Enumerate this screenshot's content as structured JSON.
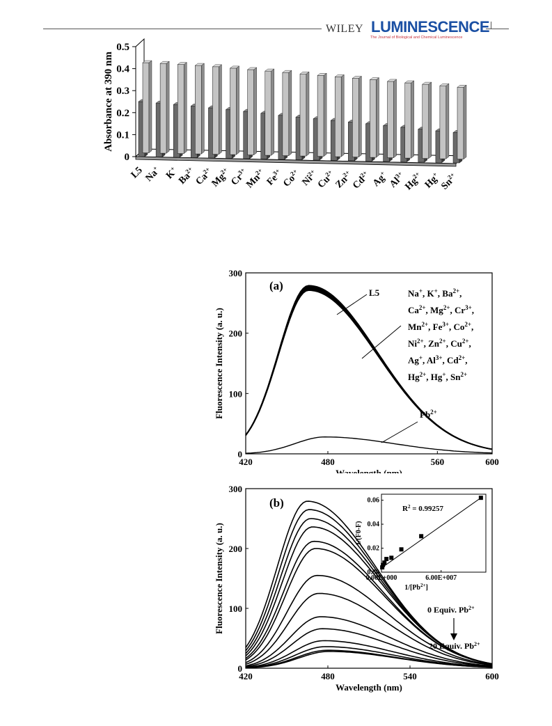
{
  "header": {
    "publisher": "WILEY",
    "journal": "LUMINESCENCE",
    "subtitle": "The Journal of Biological and Chemical Luminescence",
    "brand_color": "#1a4fa3",
    "subtitle_color": "#c8323c"
  },
  "chart_data": [
    {
      "type": "bar",
      "style": "3d-grouped",
      "ylabel": "Absorbance at 390 nm",
      "xlabel": "",
      "ylim": [
        0,
        0.5
      ],
      "yticks": [
        "0",
        "0.1",
        "0.2",
        "0.3",
        "0.4",
        "0.5"
      ],
      "categories": [
        {
          "base": "L5",
          "sup": ""
        },
        {
          "base": "Na",
          "sup": "+"
        },
        {
          "base": "K",
          "sup": "+"
        },
        {
          "base": "Ba",
          "sup": "2+"
        },
        {
          "base": "Ca",
          "sup": "2+"
        },
        {
          "base": "Mg",
          "sup": "2+"
        },
        {
          "base": "Cr",
          "sup": "3+"
        },
        {
          "base": "Mn",
          "sup": "2+"
        },
        {
          "base": "Fe",
          "sup": "3+"
        },
        {
          "base": "Co",
          "sup": "2+"
        },
        {
          "base": "Ni",
          "sup": "2+"
        },
        {
          "base": "Cu",
          "sup": "2+"
        },
        {
          "base": "Zn",
          "sup": "2+"
        },
        {
          "base": "Cd",
          "sup": "2+"
        },
        {
          "base": "Ag",
          "sup": "+"
        },
        {
          "base": "Al",
          "sup": "3+"
        },
        {
          "base": "Hg",
          "sup": "2+"
        },
        {
          "base": "Hg",
          "sup": "+"
        },
        {
          "base": "Sn",
          "sup": "2+"
        }
      ],
      "series": [
        {
          "color": "#6a6a6a",
          "values": [
            0.25,
            0.245,
            0.24,
            0.235,
            0.228,
            0.222,
            0.215,
            0.208,
            0.2,
            0.194,
            0.188,
            0.182,
            0.176,
            0.17,
            0.163,
            0.157,
            0.15,
            0.144,
            0.138
          ]
        },
        {
          "color": "#c4c4c4",
          "values": [
            0.41,
            0.408,
            0.405,
            0.402,
            0.398,
            0.393,
            0.388,
            0.383,
            0.378,
            0.373,
            0.368,
            0.363,
            0.358,
            0.353,
            0.347,
            0.342,
            0.337,
            0.332,
            0.327
          ]
        }
      ]
    },
    {
      "type": "line",
      "panel_label": "(a)",
      "xlabel": "Wavelength (nm)",
      "ylabel": "Fluorescence Intensity (a. u.)",
      "xlim": [
        420,
        600
      ],
      "ylim": [
        0,
        300
      ],
      "xticks": [
        "420",
        "480",
        "560",
        "600"
      ],
      "yticks": [
        "0",
        "100",
        "200",
        "300"
      ],
      "annotations": {
        "l5": "L5",
        "pb": "Pb",
        "pb_sup": "2+",
        "ions": [
          [
            {
              "t": "Na"
            },
            {
              "t": "+",
              "sup": true
            },
            {
              "t": ", K"
            },
            {
              "t": "+",
              "sup": true
            },
            {
              "t": ", Ba"
            },
            {
              "t": "2+",
              "sup": true
            },
            {
              "t": ","
            }
          ],
          [
            {
              "t": "Ca"
            },
            {
              "t": "2+",
              "sup": true
            },
            {
              "t": ", Mg"
            },
            {
              "t": "2+",
              "sup": true
            },
            {
              "t": ", Cr"
            },
            {
              "t": "3+",
              "sup": true
            },
            {
              "t": ","
            }
          ],
          [
            {
              "t": "Mn"
            },
            {
              "t": "2+",
              "sup": true
            },
            {
              "t": ", Fe"
            },
            {
              "t": "3+",
              "sup": true
            },
            {
              "t": ", Co"
            },
            {
              "t": "2+",
              "sup": true
            },
            {
              "t": ","
            }
          ],
          [
            {
              "t": "Ni"
            },
            {
              "t": "2+",
              "sup": true
            },
            {
              "t": ", Zn"
            },
            {
              "t": "2+",
              "sup": true
            },
            {
              "t": ", Cu"
            },
            {
              "t": "2+",
              "sup": true
            },
            {
              "t": ","
            }
          ],
          [
            {
              "t": "Ag"
            },
            {
              "t": "+",
              "sup": true
            },
            {
              "t": ", Al"
            },
            {
              "t": "3+",
              "sup": true
            },
            {
              "t": ", Cd"
            },
            {
              "t": "2+",
              "sup": true
            },
            {
              "t": ","
            }
          ],
          [
            {
              "t": "Hg"
            },
            {
              "t": "2+",
              "sup": true
            },
            {
              "t": ", Hg"
            },
            {
              "t": "+",
              "sup": true
            },
            {
              "t": ", Sn"
            },
            {
              "t": "2+",
              "sup": true
            }
          ]
        ]
      },
      "series": [
        {
          "name": "L5",
          "peak_x": 466,
          "peak_y": 275,
          "spread": 8
        },
        {
          "name": "Pb2+",
          "peak_x": 478,
          "peak_y": 28,
          "spread": 0
        }
      ]
    },
    {
      "type": "line",
      "panel_label": "(b)",
      "xlabel": "Wavelength (nm)",
      "ylabel": "Fluorescence Intensity (a. u.)",
      "xlim": [
        420,
        600
      ],
      "ylim": [
        0,
        300
      ],
      "xticks": [
        "420",
        "480",
        "540",
        "600"
      ],
      "yticks": [
        "0",
        "100",
        "200",
        "300"
      ],
      "annotations": {
        "top": "0 Equiv. Pb",
        "top_sup": "2+",
        "bottom": "20 Equiv. Pb",
        "bottom_sup": "2+"
      },
      "series_peaks": [
        279,
        265,
        250,
        236,
        212,
        200,
        155,
        125,
        86,
        66,
        46,
        36,
        30,
        28
      ],
      "inset": {
        "type": "scatter",
        "xlabel": "1/[Pb",
        "xlabel_sup": "2+",
        "xlabel_end": "]",
        "ylabel": "1/(F0-F)",
        "r2": "R",
        "r2_sup": "2",
        "r2_value": " = 0.99257",
        "xticks": [
          "0.00E+000",
          "6.00E+007"
        ],
        "yticks": [
          "0.00",
          "0.02",
          "0.04",
          "0.06"
        ],
        "xlim": [
          0,
          105000000
        ],
        "ylim": [
          0,
          0.065
        ],
        "x": [
          800000,
          1500000,
          3000000,
          5000000,
          10000000,
          20000000,
          40000000,
          100000000
        ],
        "y": [
          0.004,
          0.006,
          0.008,
          0.011,
          0.012,
          0.019,
          0.03,
          0.062
        ]
      }
    }
  ]
}
